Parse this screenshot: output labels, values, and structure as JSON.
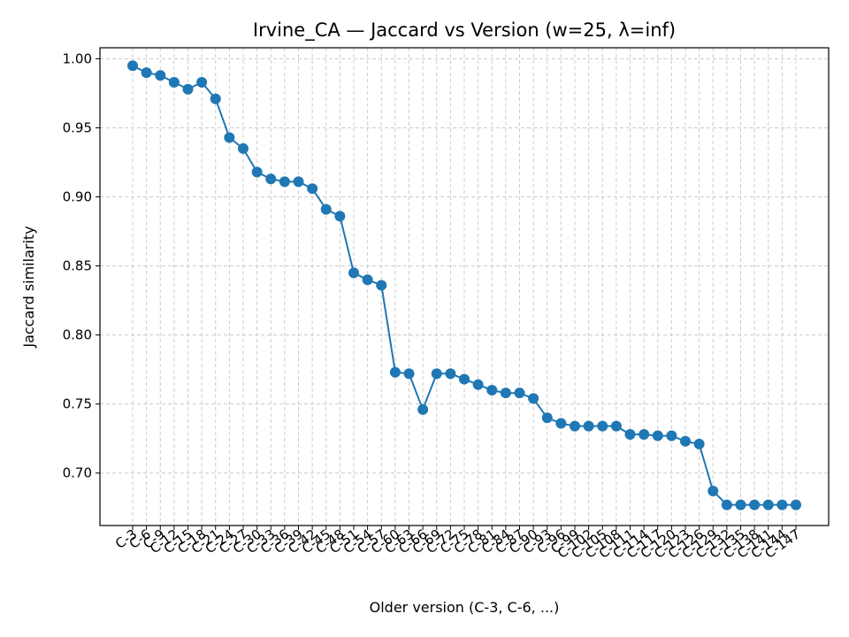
{
  "chart_data": {
    "type": "line",
    "title": "Irvine_CA — Jaccard vs Version (w=25, λ=inf)",
    "xlabel": "Older version (C-3, C-6, ...)",
    "ylabel": "Jaccard similarity",
    "ylim": [
      0.662,
      1.008
    ],
    "yticks": [
      "0.70",
      "0.75",
      "0.80",
      "0.85",
      "0.90",
      "0.95",
      "1.00"
    ],
    "grid": true,
    "marker": "circle",
    "color": "#1f77b4",
    "categories": [
      "C-3",
      "C-6",
      "C-9",
      "C-12",
      "C-15",
      "C-18",
      "C-21",
      "C-24",
      "C-27",
      "C-30",
      "C-33",
      "C-36",
      "C-39",
      "C-42",
      "C-45",
      "C-48",
      "C-51",
      "C-54",
      "C-57",
      "C-60",
      "C-63",
      "C-66",
      "C-69",
      "C-72",
      "C-75",
      "C-78",
      "C-81",
      "C-84",
      "C-87",
      "C-90",
      "C-93",
      "C-96",
      "C-99",
      "C-102",
      "C-105",
      "C-108",
      "C-111",
      "C-114",
      "C-117",
      "C-120",
      "C-123",
      "C-126",
      "C-129",
      "C-132",
      "C-135",
      "C-138",
      "C-141",
      "C-144",
      "C-147"
    ],
    "values": [
      0.995,
      0.99,
      0.988,
      0.983,
      0.978,
      0.983,
      0.971,
      0.943,
      0.935,
      0.918,
      0.913,
      0.911,
      0.911,
      0.906,
      0.891,
      0.886,
      0.845,
      0.84,
      0.836,
      0.773,
      0.772,
      0.746,
      0.772,
      0.772,
      0.768,
      0.764,
      0.76,
      0.758,
      0.758,
      0.754,
      0.74,
      0.736,
      0.734,
      0.734,
      0.734,
      0.734,
      0.728,
      0.728,
      0.727,
      0.727,
      0.723,
      0.721,
      0.687,
      0.677,
      0.677,
      0.677,
      0.677,
      0.677,
      0.677
    ]
  }
}
